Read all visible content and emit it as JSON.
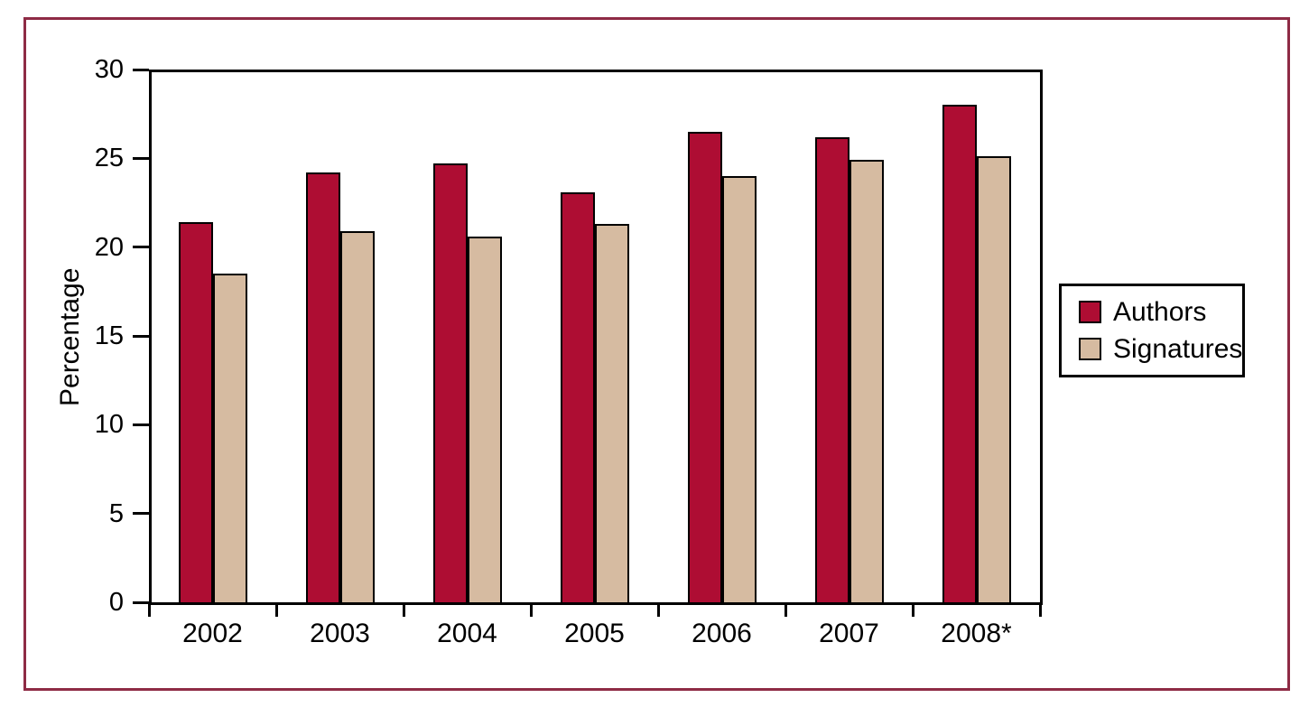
{
  "figure": {
    "border_color": "#8e2b45",
    "background": "#ffffff",
    "frame_color": "#000000"
  },
  "chart_data": {
    "type": "bar",
    "title": "",
    "xlabel": "",
    "ylabel": "Percentage",
    "categories": [
      "2002",
      "2003",
      "2004",
      "2005",
      "2006",
      "2007",
      "2008*"
    ],
    "series": [
      {
        "name": "Authors",
        "color": "#ae0d33",
        "values": [
          21.4,
          24.2,
          24.7,
          23.1,
          26.5,
          26.2,
          28.0
        ]
      },
      {
        "name": "Signatures",
        "color": "#d6bba1",
        "values": [
          18.5,
          20.9,
          20.6,
          21.3,
          24.0,
          24.9,
          25.1
        ]
      }
    ],
    "ylim": [
      0,
      30
    ],
    "yticks": [
      "0",
      "5",
      "10",
      "15",
      "20",
      "25",
      "30"
    ],
    "ytick_values": [
      0,
      5,
      10,
      15,
      20,
      25,
      30
    ],
    "grid": false,
    "legend_position": "right",
    "bar_outline_color": "#000000"
  }
}
